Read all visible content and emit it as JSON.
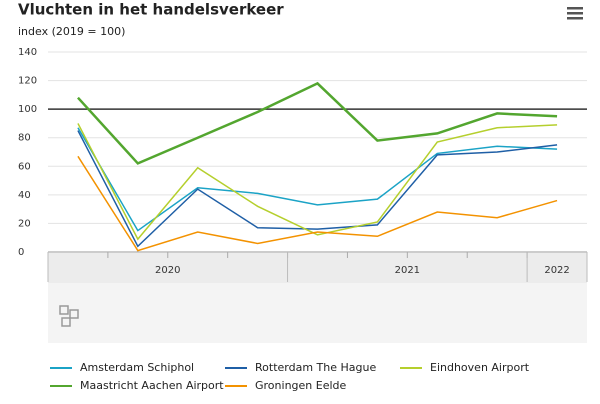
{
  "chart_data": {
    "type": "line",
    "title": "Vluchten in het handelsverkeer",
    "subtitle": "index (2019 = 100)",
    "categories": [
      null,
      null,
      null,
      null,
      null,
      null,
      null,
      null,
      null
    ],
    "year_groups": [
      {
        "label": "2020",
        "count": 4
      },
      {
        "label": "2021",
        "count": 4
      },
      {
        "label": "2022",
        "count": 1
      }
    ],
    "ylim": [
      0,
      140
    ],
    "yticks": [
      0,
      20,
      40,
      60,
      80,
      100,
      120,
      140
    ],
    "grid": true,
    "reference_line": 100,
    "series": [
      {
        "name": "Amsterdam Schiphol",
        "color": "#1ba3c6",
        "values": [
          87,
          15,
          45,
          41,
          33,
          37,
          69,
          74,
          72
        ]
      },
      {
        "name": "Rotterdam The Hague",
        "color": "#1f5fa6",
        "values": [
          85,
          4,
          44,
          17,
          16,
          19,
          68,
          70,
          75
        ]
      },
      {
        "name": "Eindhoven Airport",
        "color": "#b5cf2d",
        "values": [
          90,
          9,
          59,
          32,
          12,
          21,
          77,
          87,
          89
        ]
      },
      {
        "name": "Maastricht Aachen Airport",
        "color": "#53a62f",
        "values": [
          108,
          62,
          80,
          98,
          118,
          78,
          83,
          97,
          95
        ]
      },
      {
        "name": "Groningen Eelde",
        "color": "#f39200",
        "values": [
          67,
          1,
          14,
          6,
          14,
          11,
          28,
          24,
          36
        ]
      }
    ]
  }
}
